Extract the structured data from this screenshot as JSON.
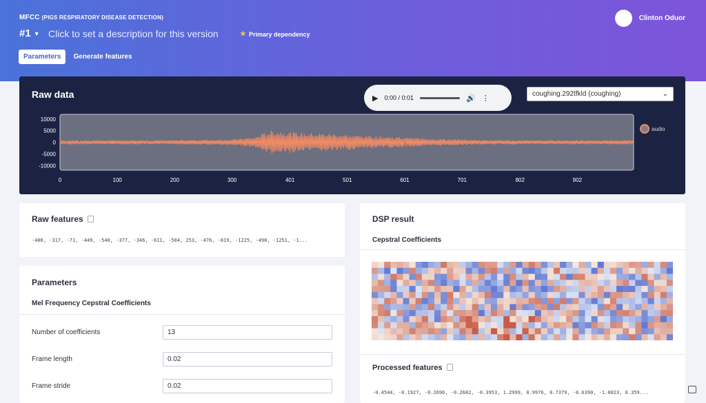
{
  "header": {
    "project_title": "MFCC",
    "project_subtitle": "(PIGS RESPIRATORY DISEASE DETECTION)",
    "version": "#1",
    "description_placeholder": "Click to set a description for this version",
    "dependency": "Primary dependency",
    "user_name": "Clinton Oduor",
    "tabs": [
      {
        "label": "Parameters",
        "active": true
      },
      {
        "label": "Generate features",
        "active": false
      }
    ]
  },
  "raw_data": {
    "title": "Raw data",
    "audio": {
      "time": "0:00 / 0:01"
    },
    "sample_select": "coughing.292tfkld (coughing)"
  },
  "chart_data": {
    "type": "line",
    "series": [
      {
        "name": "audio",
        "color": "#f08a64"
      }
    ],
    "ylim": [
      -12000,
      12000
    ],
    "y_ticks": [
      "10000",
      "5000",
      "0",
      "-5000",
      "-10000"
    ],
    "y_tick_values": [
      10000,
      5000,
      0,
      -5000,
      -10000
    ],
    "x_ticks": [
      "0",
      "100",
      "200",
      "300",
      "401",
      "501",
      "601",
      "701",
      "802",
      "902"
    ],
    "x_tick_values": [
      0,
      100,
      200,
      300,
      401,
      501,
      601,
      701,
      802,
      902
    ],
    "xlim": [
      0,
      1000
    ],
    "envelope": [
      {
        "x": 0,
        "amp": 700
      },
      {
        "x": 100,
        "amp": 900
      },
      {
        "x": 200,
        "amp": 900
      },
      {
        "x": 250,
        "amp": 1100
      },
      {
        "x": 300,
        "amp": 1300
      },
      {
        "x": 340,
        "amp": 2200
      },
      {
        "x": 350,
        "amp": 3500
      },
      {
        "x": 370,
        "amp": 5200
      },
      {
        "x": 420,
        "amp": 4200
      },
      {
        "x": 470,
        "amp": 3800
      },
      {
        "x": 520,
        "amp": 3000
      },
      {
        "x": 580,
        "amp": 2400
      },
      {
        "x": 650,
        "amp": 1600
      },
      {
        "x": 720,
        "amp": 1100
      },
      {
        "x": 820,
        "amp": 800
      },
      {
        "x": 1000,
        "amp": 900
      }
    ]
  },
  "raw_features": {
    "title": "Raw features",
    "values": "-406, -317, -71, -449, -540, -377, -346, -611, -504, 253, -476, -819, -1225, -498, -1251, -1..."
  },
  "parameters": {
    "title": "Parameters",
    "section": "Mel Frequency Cepstral Coefficients",
    "fields": [
      {
        "label": "Number of coefficients",
        "value": "13"
      },
      {
        "label": "Frame length",
        "value": "0.02"
      },
      {
        "label": "Frame stride",
        "value": "0.02"
      }
    ]
  },
  "dsp": {
    "title": "DSP result",
    "subtitle": "Cepstral Coefficients",
    "processed_title": "Processed features",
    "processed_values": "-0.4544, -0.1927, -0.2696, -0.2682, -0.3953, 1.2999, 0.9976, 0.7379, -0.6390, -1.0023, 0.359..."
  },
  "colors": {
    "accent": "#4a62c9",
    "wave": "#f08a64",
    "panel": "#1c2342"
  }
}
